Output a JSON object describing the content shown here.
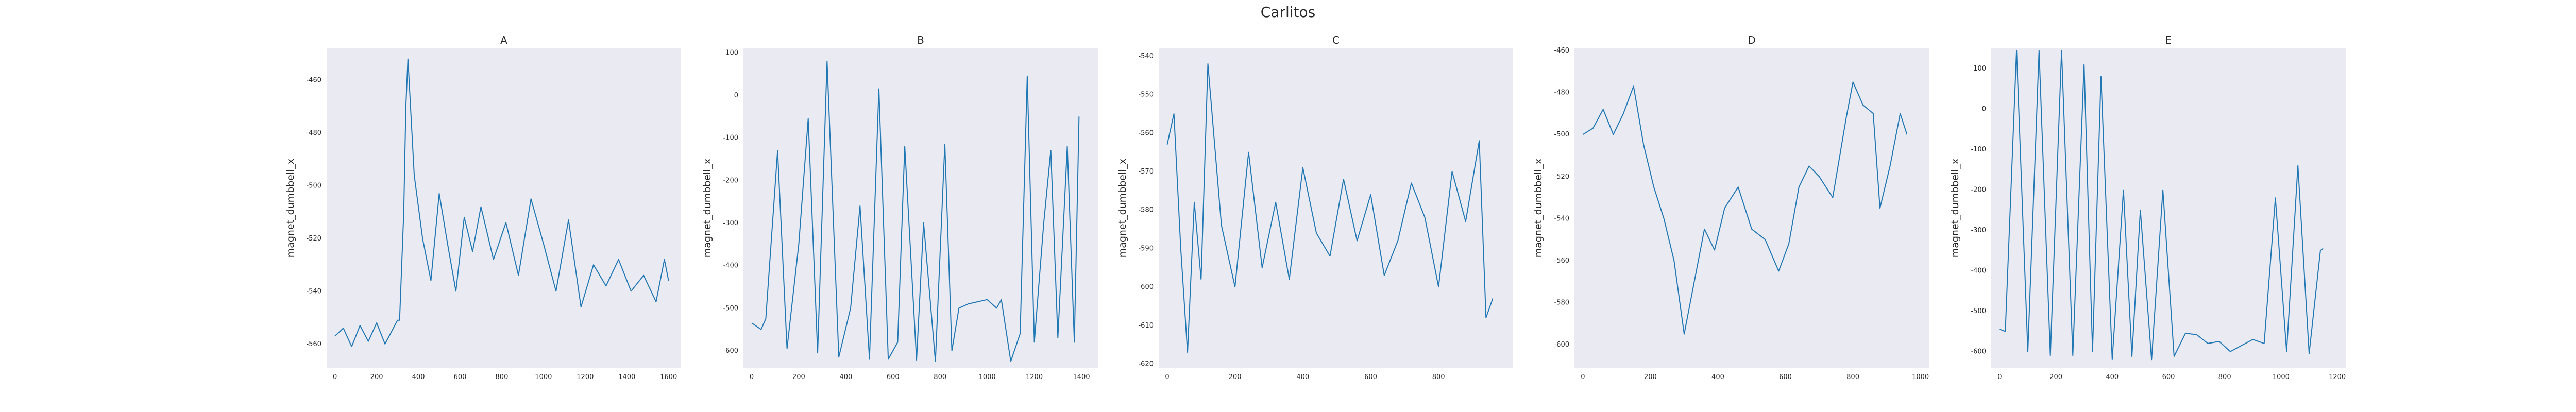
{
  "figure": {
    "title": "Carlitos"
  },
  "chart_data": [
    {
      "type": "line",
      "title": "A",
      "xlabel": "",
      "ylabel": "magnet_dumbbell_x",
      "xlim": [
        -40,
        1660
      ],
      "ylim": [
        -569,
        -448
      ],
      "xticks": [
        0,
        200,
        400,
        600,
        800,
        1000,
        1200,
        1400,
        1600
      ],
      "yticks": [
        -560,
        -540,
        -520,
        -500,
        -480,
        -460
      ],
      "grid": false,
      "color": "#1f77b4",
      "series": [
        {
          "x": [
            0,
            40,
            80,
            120,
            160,
            200,
            240,
            280,
            300,
            310,
            330,
            340,
            350,
            380,
            420,
            460,
            500,
            540,
            580,
            620,
            660,
            700,
            760,
            820,
            880,
            940,
            1000,
            1060,
            1120,
            1180,
            1240,
            1300,
            1360,
            1420,
            1480,
            1540,
            1580,
            1600
          ],
          "y": [
            -557,
            -554,
            -561,
            -553,
            -559,
            -552,
            -560,
            -554,
            -551,
            -551,
            -510,
            -470,
            -452,
            -496,
            -520,
            -536,
            -503,
            -522,
            -540,
            -512,
            -525,
            -508,
            -528,
            -514,
            -534,
            -505,
            -522,
            -540,
            -513,
            -546,
            -530,
            -538,
            -528,
            -540,
            -534,
            -544,
            -528,
            -536
          ]
        }
      ]
    },
    {
      "type": "line",
      "title": "B",
      "xlabel": "",
      "ylabel": "magnet_dumbbell_x",
      "xlim": [
        -35,
        1470
      ],
      "ylim": [
        -640,
        110
      ],
      "xticks": [
        0,
        200,
        400,
        600,
        800,
        1000,
        1200,
        1400
      ],
      "yticks": [
        -600,
        -500,
        -400,
        -300,
        -200,
        -100,
        0,
        100
      ],
      "grid": false,
      "color": "#1f77b4",
      "series": [
        {
          "x": [
            0,
            40,
            60,
            110,
            150,
            200,
            240,
            280,
            320,
            370,
            420,
            460,
            500,
            540,
            580,
            620,
            650,
            700,
            730,
            780,
            820,
            850,
            880,
            920,
            960,
            1000,
            1040,
            1060,
            1100,
            1140,
            1170,
            1200,
            1240,
            1270,
            1300,
            1340,
            1370,
            1390
          ],
          "y": [
            -535,
            -550,
            -525,
            -130,
            -595,
            -350,
            -55,
            -605,
            80,
            -615,
            -500,
            -260,
            -620,
            15,
            -620,
            -580,
            -120,
            -622,
            -300,
            -625,
            -115,
            -600,
            -500,
            -490,
            -485,
            -480,
            -500,
            -480,
            -625,
            -560,
            45,
            -580,
            -300,
            -130,
            -570,
            -120,
            -580,
            -50
          ]
        }
      ]
    },
    {
      "type": "line",
      "title": "C",
      "xlabel": "",
      "ylabel": "magnet_dumbbell_x",
      "xlim": [
        -25,
        1020
      ],
      "ylim": [
        -621,
        -538
      ],
      "xticks": [
        0,
        200,
        400,
        600,
        800
      ],
      "yticks": [
        -620,
        -610,
        -600,
        -590,
        -580,
        -570,
        -560,
        -550,
        -540
      ],
      "grid": false,
      "color": "#1f77b4",
      "series": [
        {
          "x": [
            0,
            20,
            40,
            60,
            80,
            100,
            120,
            140,
            160,
            200,
            240,
            280,
            320,
            360,
            400,
            440,
            480,
            520,
            560,
            600,
            640,
            680,
            720,
            760,
            800,
            840,
            880,
            920,
            940,
            960
          ],
          "y": [
            -563,
            -555,
            -590,
            -617,
            -578,
            -598,
            -542,
            -563,
            -584,
            -600,
            -565,
            -595,
            -578,
            -598,
            -569,
            -586,
            -592,
            -572,
            -588,
            -576,
            -597,
            -588,
            -573,
            -582,
            -600,
            -570,
            -583,
            -562,
            -608,
            -603
          ]
        }
      ]
    },
    {
      "type": "line",
      "title": "D",
      "xlabel": "",
      "ylabel": "magnet_dumbbell_x",
      "xlim": [
        -25,
        1025
      ],
      "ylim": [
        -611,
        -459
      ],
      "xticks": [
        0,
        200,
        400,
        600,
        800,
        1000
      ],
      "yticks": [
        -600,
        -580,
        -560,
        -540,
        -520,
        -500,
        -480,
        -460
      ],
      "grid": false,
      "color": "#1f77b4",
      "series": [
        {
          "x": [
            0,
            30,
            60,
            90,
            120,
            150,
            180,
            210,
            240,
            270,
            300,
            330,
            360,
            390,
            420,
            460,
            500,
            540,
            580,
            610,
            640,
            670,
            700,
            740,
            780,
            800,
            830,
            860,
            880,
            910,
            940,
            960
          ],
          "y": [
            -500,
            -497,
            -488,
            -500,
            -490,
            -477,
            -505,
            -525,
            -540,
            -560,
            -595,
            -570,
            -545,
            -555,
            -535,
            -525,
            -545,
            -550,
            -565,
            -552,
            -525,
            -515,
            -520,
            -530,
            -492,
            -475,
            -486,
            -490,
            -535,
            -515,
            -490,
            -500
          ]
        }
      ]
    },
    {
      "type": "line",
      "title": "E",
      "xlabel": "",
      "ylabel": "magnet_dumbbell_x",
      "xlim": [
        -30,
        1230
      ],
      "ylim": [
        -640,
        150
      ],
      "xticks": [
        0,
        200,
        400,
        600,
        800,
        1000,
        1200
      ],
      "yticks": [
        -600,
        -500,
        -400,
        -300,
        -200,
        -100,
        0,
        100
      ],
      "grid": false,
      "color": "#1f77b4",
      "series": [
        {
          "x": [
            0,
            20,
            60,
            100,
            140,
            180,
            220,
            260,
            300,
            330,
            360,
            400,
            440,
            470,
            500,
            540,
            580,
            620,
            660,
            700,
            740,
            780,
            820,
            860,
            900,
            940,
            980,
            1020,
            1060,
            1100,
            1140,
            1150
          ],
          "y": [
            -545,
            -550,
            145,
            -600,
            145,
            -610,
            145,
            -610,
            110,
            -600,
            80,
            -620,
            -200,
            -612,
            -250,
            -620,
            -200,
            -612,
            -555,
            -558,
            -580,
            -575,
            -600,
            -585,
            -570,
            -580,
            -220,
            -600,
            -140,
            -605,
            -350,
            -345
          ]
        }
      ]
    }
  ]
}
